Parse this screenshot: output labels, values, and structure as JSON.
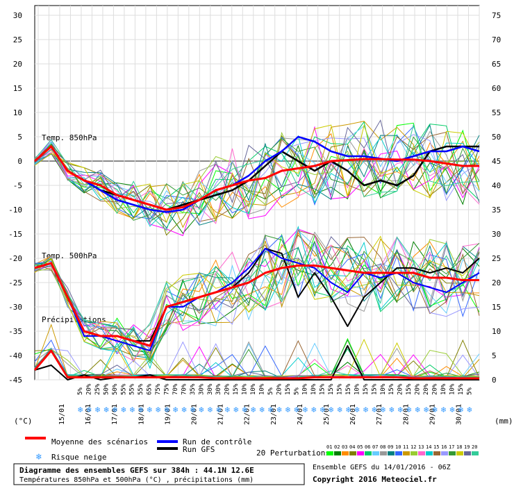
{
  "chart_data": {
    "type": "line",
    "title": "Diagramme des ensembles GEFS sur 384h : 44.1N 12.6E",
    "subtitle": "Températures 850hPa et 500hPa (°C) , précipitations (mm)",
    "run_info": "Ensemble GEFS du 14/01/2016 - 06Z",
    "copyright": "Copyright 2016 Meteociel.fr",
    "left_axis_label": "(°C)",
    "right_axis_label": "(mm)",
    "left_ticks": [
      30,
      25,
      20,
      15,
      10,
      5,
      0,
      -5,
      -10,
      -15,
      -20,
      -25,
      -30,
      -35,
      -40,
      -45
    ],
    "right_ticks": [
      75,
      70,
      65,
      60,
      55,
      50,
      45,
      40,
      35,
      30,
      25,
      20,
      15,
      10,
      5,
      0
    ],
    "ylim_temp": [
      -45,
      30
    ],
    "ylim_precip": [
      0,
      75
    ],
    "x_dates": [
      "15/01",
      "16/01",
      "17/01",
      "18/01",
      "19/01",
      "20/01",
      "21/01",
      "22/01",
      "23/01",
      "24/01",
      "25/01",
      "26/01",
      "27/01",
      "28/01",
      "29/01",
      "30/01"
    ],
    "section_labels": {
      "t850": "Temp. 850hPa",
      "t500": "Temp. 500hPa",
      "precip": "Précipitations"
    },
    "snow_risk_percent": [
      "5%",
      "20%",
      "25%",
      "50%",
      "50%",
      "55%",
      "55%",
      "55%",
      "65%",
      "75%",
      "75%",
      "70%",
      "70%",
      "35%",
      "30%",
      "30%",
      "30%",
      "20%",
      "15%",
      "10%",
      "10%",
      "10%",
      "5%",
      "20%",
      "15%",
      "5%",
      "10%",
      "10%",
      "15%",
      "15%",
      "15%",
      "15%",
      "10%",
      "15%",
      "15%",
      "10%",
      "15%",
      "20%",
      "15%",
      "20%",
      "20%",
      "20%",
      "10%",
      "10%",
      "15%",
      "5%"
    ],
    "legend": {
      "mean": "Moyenne des scénarios",
      "control": "Run de contrôle",
      "gfs": "Run GFS",
      "snow": "Risque neige",
      "perturbations": "20 Perturbations",
      "pert_numbers": [
        "01",
        "02",
        "03",
        "04",
        "05",
        "06",
        "07",
        "08",
        "09",
        "10",
        "11",
        "12",
        "13",
        "14",
        "15",
        "16",
        "17",
        "18",
        "19",
        "20"
      ]
    },
    "colors": {
      "mean": "#ff0000",
      "control": "#0000ff",
      "gfs": "#000000",
      "perturbations": [
        "#00ff00",
        "#008000",
        "#ff8c00",
        "#808000",
        "#ff00ff",
        "#00cc66",
        "#66ccff",
        "#999999",
        "#008080",
        "#3366ff",
        "#cc9900",
        "#99cc33",
        "#ff66cc",
        "#00cccc",
        "#996633",
        "#9999ff",
        "#339933",
        "#cccc00",
        "#666699",
        "#33cc99"
      ]
    },
    "series": {
      "t850_mean": [
        0,
        3,
        -2,
        -4,
        -5,
        -7,
        -8,
        -9,
        -10,
        -9.5,
        -8,
        -6,
        -5,
        -4,
        -3.5,
        -2,
        -1.5,
        -1,
        0,
        0.2,
        0.4,
        0.4,
        0.3,
        0.3,
        0,
        -0.5,
        -1,
        -1
      ],
      "t850_control": [
        0,
        3,
        -2,
        -4,
        -6,
        -8,
        -9,
        -10,
        -10.5,
        -10,
        -8,
        -6,
        -5,
        -3,
        0,
        2,
        5,
        4,
        2,
        1,
        1,
        0.5,
        0,
        1,
        2,
        2,
        3,
        2
      ],
      "t850_gfs": [
        0,
        3,
        -2,
        -4,
        -6,
        -7,
        -8,
        -9,
        -10,
        -9,
        -8,
        -7,
        -6,
        -4,
        -1,
        2,
        0,
        -2,
        0,
        -2,
        -5,
        -4,
        -5,
        -3,
        2,
        3,
        3,
        3
      ],
      "t500_mean": [
        -22,
        -21,
        -28,
        -35,
        -36,
        -36,
        -37,
        -38,
        -30,
        -29,
        -28,
        -27,
        -26,
        -25,
        -23,
        -22,
        -21.5,
        -21.5,
        -22,
        -22.5,
        -23,
        -23,
        -23,
        -23,
        -24,
        -24,
        -24.5,
        -24.5
      ],
      "t500_control": [
        -22,
        -21,
        -28,
        -36,
        -36,
        -37,
        -38,
        -39,
        -30,
        -30,
        -28,
        -27,
        -25,
        -22,
        -18,
        -20,
        -21,
        -22,
        -25,
        -27,
        -23,
        -24,
        -23,
        -25,
        -26,
        -27,
        -25,
        -23
      ],
      "t500_gfs": [
        -22,
        -21,
        -28,
        -35,
        -36,
        -36,
        -37,
        -37,
        -30,
        -29,
        -28,
        -27,
        -26,
        -23,
        -18,
        -19,
        -28,
        -23,
        -28,
        -34,
        -28,
        -25,
        -22,
        -22,
        -23,
        -22,
        -23,
        -20
      ],
      "precip_mean": [
        2,
        6,
        0.5,
        0.5,
        0.5,
        0.5,
        0.5,
        0.5,
        0.5,
        0.5,
        0.5,
        0.3,
        0.3,
        0.3,
        0.3,
        0.3,
        0.3,
        0.5,
        0.5,
        0.5,
        0.5,
        0.5,
        0.5,
        0.3,
        0.3,
        0.3,
        0.3,
        0.3
      ],
      "precip_gfs": [
        2,
        3,
        0,
        1,
        0,
        0.5,
        0.5,
        1,
        0,
        0,
        0,
        0,
        0,
        0,
        0,
        0,
        0,
        0,
        0,
        7,
        0,
        0,
        0,
        0,
        0,
        0,
        0,
        0
      ]
    }
  }
}
